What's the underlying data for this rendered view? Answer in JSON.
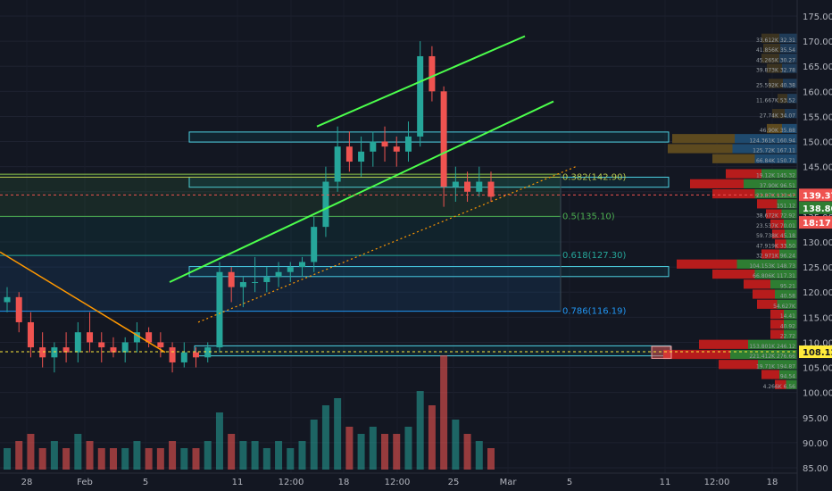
{
  "chart_data": {
    "type": "candlestick",
    "x_ticks": [
      "28",
      "Feb",
      "5",
      "11",
      "12:00",
      "18",
      "12:00",
      "25",
      "Mar",
      "5",
      "11",
      "12:00",
      "18"
    ],
    "y_ticks": [
      "85.00",
      "90.00",
      "95.00",
      "100.00",
      "105.00",
      "110.00",
      "115.00",
      "120.00",
      "125.00",
      "130.00",
      "135.00",
      "140.00",
      "145.00",
      "150.00",
      "155.00",
      "160.00",
      "165.00",
      "170.00",
      "175.00"
    ],
    "ylim": [
      85,
      178
    ],
    "price_labels": {
      "last": "139.37",
      "second": "138.80",
      "countdown": "18:17",
      "support": "108.12"
    },
    "fib_levels": [
      {
        "label": "0.382(142.90)",
        "value": 142.9
      },
      {
        "label": "0.5(135.10)",
        "value": 135.1
      },
      {
        "label": "0.618(127.30)",
        "value": 127.3
      },
      {
        "label": "0.786(116.19)",
        "value": 116.19
      }
    ],
    "zones": [
      {
        "from": 149.9,
        "to": 151.9
      },
      {
        "from": 140.9,
        "to": 142.9
      },
      {
        "from": 123.1,
        "to": 125.1
      },
      {
        "from": 107.3,
        "to": 109.3
      }
    ],
    "series": [
      {
        "values": [
          [
            118,
            121,
            116,
            119
          ],
          [
            119,
            120,
            112,
            114
          ],
          [
            114,
            116,
            107,
            109
          ],
          [
            109,
            112,
            105,
            107
          ],
          [
            107,
            110,
            104,
            109
          ],
          [
            109,
            112,
            106,
            108
          ],
          [
            108,
            114,
            106,
            112
          ],
          [
            112,
            116,
            108,
            110
          ],
          [
            110,
            112,
            106,
            109
          ],
          [
            109,
            111,
            107,
            108
          ],
          [
            108,
            111,
            106,
            110
          ],
          [
            110,
            114,
            108,
            112
          ],
          [
            112,
            113,
            109,
            110
          ],
          [
            110,
            112,
            107,
            109
          ],
          [
            109,
            110,
            104,
            106
          ],
          [
            106,
            110,
            105,
            108
          ],
          [
            108,
            109,
            105,
            107
          ],
          [
            107,
            110,
            106,
            109
          ],
          [
            109,
            126,
            108,
            124
          ],
          [
            124,
            125,
            118,
            121
          ],
          [
            121,
            123,
            117,
            122
          ],
          [
            122,
            127,
            120,
            122
          ],
          [
            122,
            125,
            120,
            123
          ],
          [
            123,
            126,
            121,
            124
          ],
          [
            124,
            126,
            122,
            125
          ],
          [
            125,
            127,
            123,
            126
          ],
          [
            126,
            135,
            124,
            133
          ],
          [
            133,
            145,
            131,
            142
          ],
          [
            142,
            153,
            140,
            149
          ],
          [
            149,
            152,
            144,
            146
          ],
          [
            146,
            151,
            143,
            148
          ],
          [
            148,
            152,
            145,
            150
          ],
          [
            150,
            153,
            146,
            149
          ],
          [
            149,
            151,
            145,
            148
          ],
          [
            148,
            154,
            146,
            151
          ],
          [
            151,
            170,
            149,
            167
          ],
          [
            167,
            169,
            158,
            160
          ],
          [
            160,
            161,
            137,
            141
          ],
          [
            141,
            145,
            138,
            142
          ],
          [
            142,
            144,
            138,
            140
          ],
          [
            140,
            145,
            139,
            142
          ],
          [
            142,
            144,
            138,
            139
          ]
        ],
        "color_up": "#26a69a",
        "color_down": "#ef5350"
      }
    ],
    "volume": [
      3,
      4,
      5,
      3,
      4,
      3,
      5,
      4,
      3,
      3,
      3,
      4,
      3,
      3,
      4,
      3,
      3,
      4,
      8,
      5,
      4,
      4,
      3,
      4,
      3,
      4,
      7,
      9,
      10,
      6,
      5,
      6,
      5,
      5,
      6,
      11,
      9,
      16,
      7,
      5,
      4,
      3
    ],
    "volume_profile": [
      {
        "price": 170.5,
        "label": "33.612K 32.31"
      },
      {
        "price": 168.5,
        "label": "41.856K 35.54"
      },
      {
        "price": 166.5,
        "label": "45.265K 30.27"
      },
      {
        "price": 164.5,
        "label": "39.873K 32.78"
      },
      {
        "price": 161.5,
        "label": "25.592K 40.38"
      },
      {
        "price": 158.5,
        "label": "11.667K 53.52"
      },
      {
        "price": 155.5,
        "label": "27.74K 34.07"
      },
      {
        "price": 152.5,
        "label": "46.90K 35.88"
      },
      {
        "price": 150.5,
        "label": "124.361K 160.94"
      },
      {
        "price": 148.5,
        "label": "125.72K 167.11"
      },
      {
        "price": 146.5,
        "label": "66.84K 150.71"
      },
      {
        "price": 143.5,
        "label": "19.12K 145.32"
      },
      {
        "price": 141.5,
        "label": "37.90K 96.51"
      },
      {
        "price": 139.5,
        "label": "23.87K 133.47"
      },
      {
        "price": 137.5,
        "label": "151.12"
      },
      {
        "price": 135.5,
        "label": "38.672K 72.92"
      },
      {
        "price": 133.5,
        "label": "23.537K 70.01"
      },
      {
        "price": 131.5,
        "label": "59.738K 45.18"
      },
      {
        "price": 129.5,
        "label": "47.919K 33.50"
      },
      {
        "price": 127.5,
        "label": "32.971K 96.24"
      },
      {
        "price": 125.5,
        "label": "104.153K 148.73"
      },
      {
        "price": 123.5,
        "label": "66.806K 117.31"
      },
      {
        "price": 121.5,
        "label": "95.21"
      },
      {
        "price": 119.5,
        "label": "40.58"
      },
      {
        "price": 117.5,
        "label": "54.627K"
      },
      {
        "price": 115.5,
        "label": "14.41"
      },
      {
        "price": 113.5,
        "label": "40.92"
      },
      {
        "price": 111.5,
        "label": "22.72"
      },
      {
        "price": 109.5,
        "label": "153.801K 246.12"
      },
      {
        "price": 107.5,
        "label": "221.412K 276.66"
      },
      {
        "price": 105.5,
        "label": "19.71K 194.87"
      },
      {
        "price": 103.5,
        "label": "94.54"
      },
      {
        "price": 101.5,
        "label": "4.266K 6.56"
      }
    ]
  }
}
